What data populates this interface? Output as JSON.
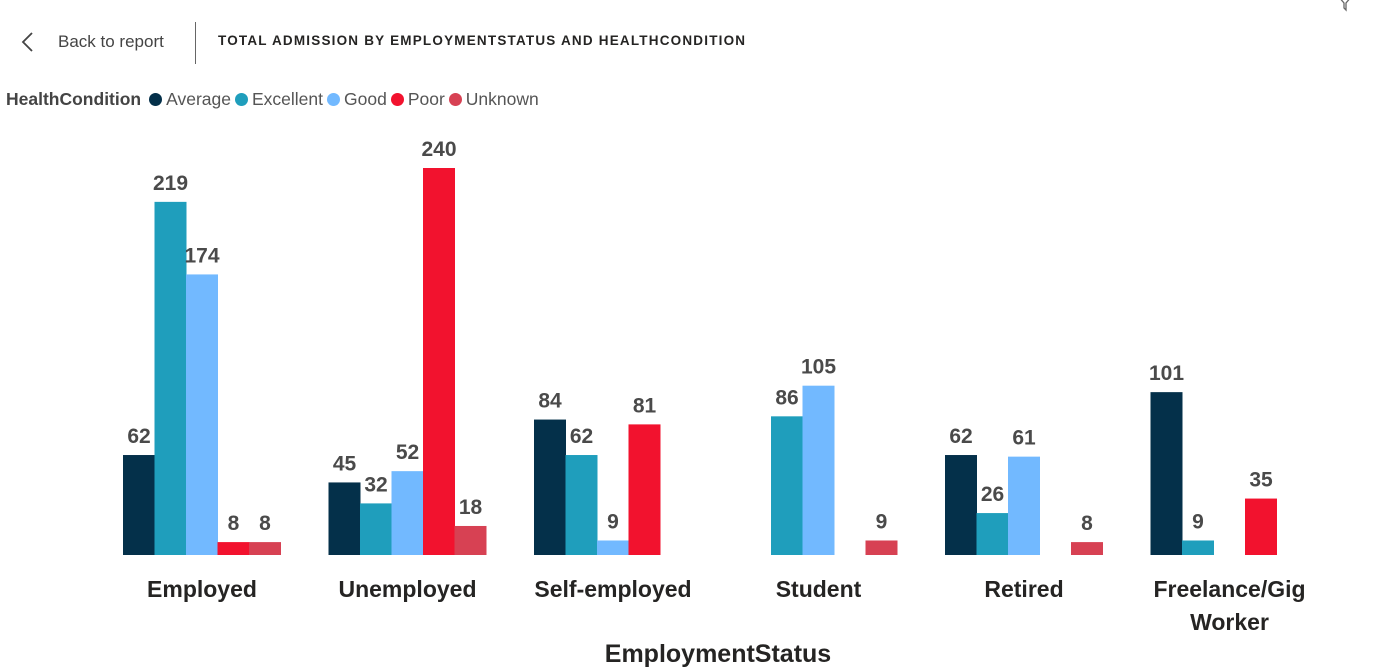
{
  "header": {
    "back_label": "Back to report",
    "title": "TOTAL ADMISSION BY EMPLOYMENTSTATUS AND HEALTHCONDITION"
  },
  "colors": {
    "Average": "#04304A",
    "Excellent": "#1F9EBC",
    "Good": "#72B9FF",
    "Poor": "#F2122E",
    "Unknown": "#D74153"
  },
  "chart_data": {
    "type": "bar",
    "title": "TOTAL ADMISSION BY EMPLOYMENTSTATUS AND HEALTHCONDITION",
    "xlabel": "EmploymentStatus",
    "ylabel": "",
    "ylim": [
      0,
      250
    ],
    "grid": false,
    "legend_title": "HealthCondition",
    "legend_position": "top-left",
    "categories": [
      "Employed",
      "Unemployed",
      "Self-employed",
      "Student",
      "Retired",
      "Freelance/Gig Worker"
    ],
    "series": [
      {
        "name": "Average",
        "values": [
          62,
          45,
          84,
          null,
          62,
          101
        ]
      },
      {
        "name": "Excellent",
        "values": [
          219,
          32,
          62,
          86,
          26,
          9
        ]
      },
      {
        "name": "Good",
        "values": [
          174,
          52,
          9,
          105,
          61,
          null
        ]
      },
      {
        "name": "Poor",
        "values": [
          8,
          240,
          81,
          null,
          null,
          35
        ]
      },
      {
        "name": "Unknown",
        "values": [
          8,
          18,
          null,
          9,
          8,
          null
        ]
      }
    ]
  }
}
